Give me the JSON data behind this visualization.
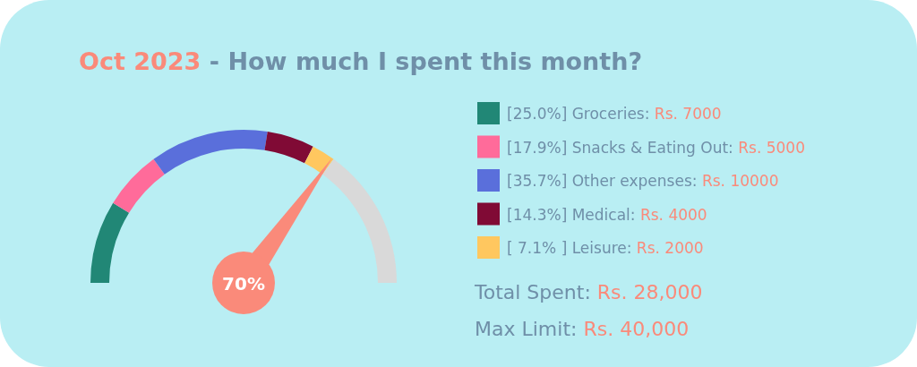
{
  "chart_data": {
    "type": "donut",
    "title": "Oct 2023 - How much I spent this month?",
    "categories": [
      "[25.0%] Groceries: Rs. 7000",
      "[17.9%] Snacks & Eating Out: Rs. 5000",
      "[35.7%] Other expenses: Rs. 10000",
      "[14.3%] Medical: Rs. 4000",
      "[ 7.1% ] Leisure: Rs. 2000",
      null
    ],
    "values": [
      7000,
      5000,
      10000,
      4000,
      2000,
      12000
    ],
    "colors": [
      "#218776",
      "#ff6b9a",
      "#5a6fdb",
      "#800a35",
      "#ffc75f",
      "#d9d9d9"
    ],
    "needle": "[ 7.1% ] Leisure: Rs. 2000",
    "legend": "right",
    "annotations": [
      "70%",
      "Total Spent: Rs. 28,000",
      "Max Limit: Rs. 40,000"
    ]
  }
}
